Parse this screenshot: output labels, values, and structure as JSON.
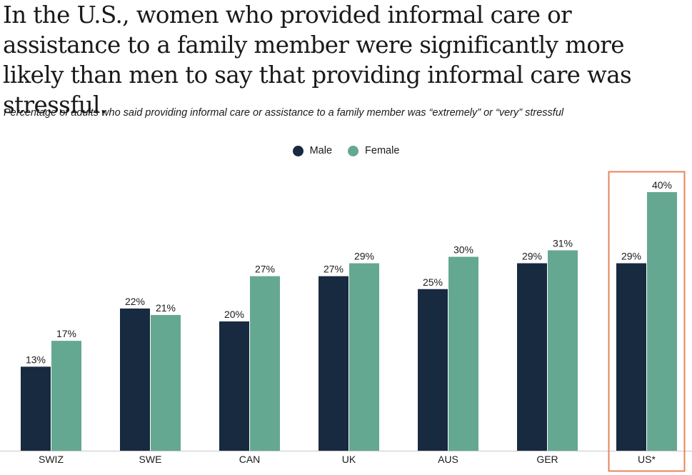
{
  "chart_data": {
    "type": "bar",
    "title": "In the U.S., women who provided informal care or assistance to a family member were significantly more likely than men to say that providing informal care was stressful.",
    "subtitle": "Percentage of adults who said providing informal care or assistance to a family member was “extremely” or “very” stressful",
    "categories": [
      "SWIZ",
      "SWE",
      "CAN",
      "UK",
      "AUS",
      "GER",
      "US*"
    ],
    "series": [
      {
        "name": "Male",
        "color": "#182a40",
        "values": [
          13,
          22,
          20,
          27,
          25,
          29,
          29
        ]
      },
      {
        "name": "Female",
        "color": "#65a892",
        "values": [
          17,
          21,
          27,
          29,
          30,
          31,
          40
        ]
      }
    ],
    "value_suffix": "%",
    "ylim": [
      0,
      42
    ],
    "highlight": {
      "category": "US*",
      "color": "#e8835c"
    },
    "legend_position": "top-center",
    "xlabel": "",
    "ylabel": ""
  }
}
